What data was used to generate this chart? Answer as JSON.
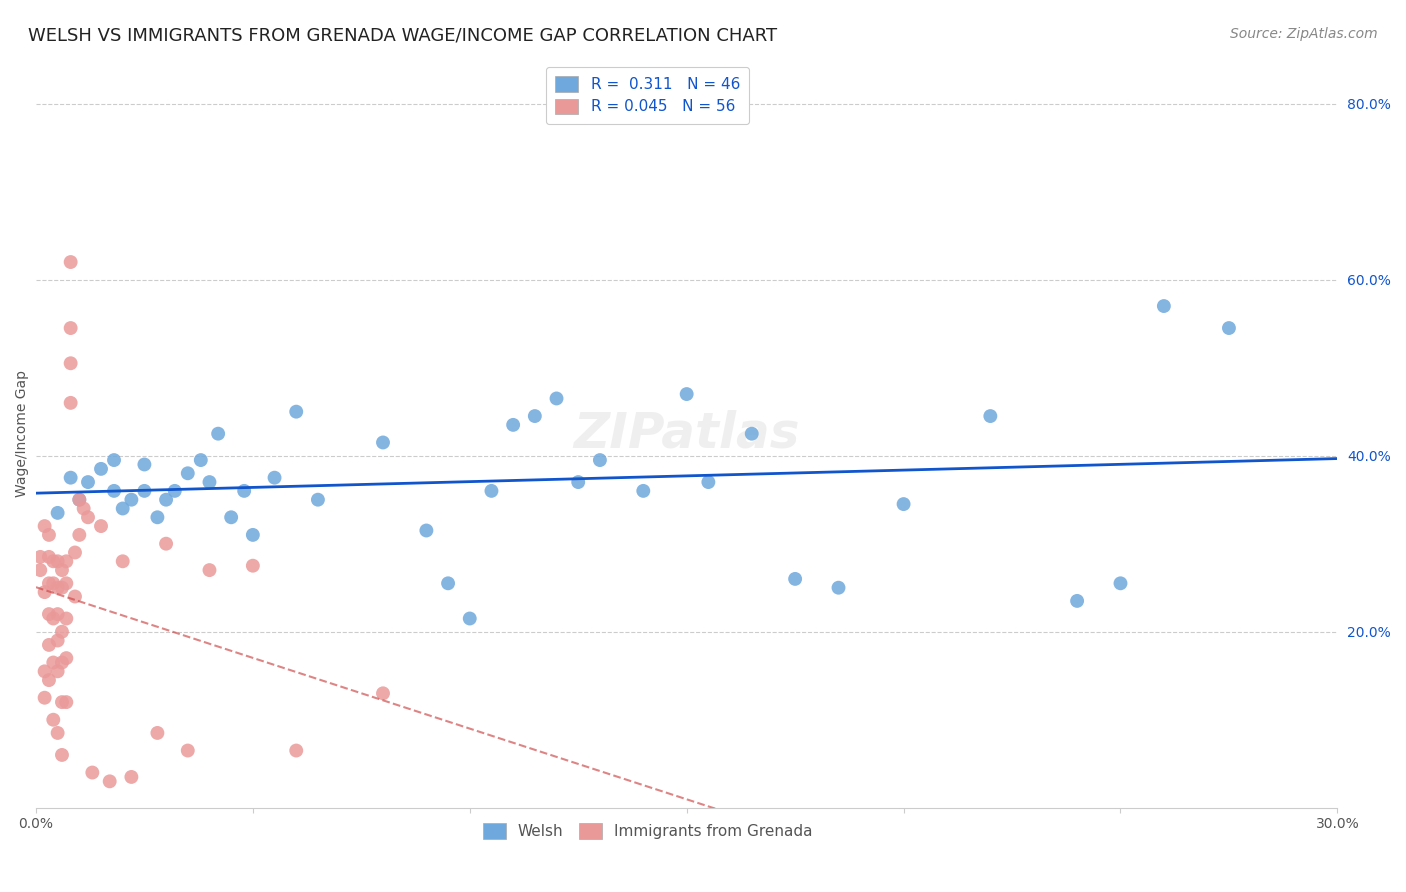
{
  "title": "WELSH VS IMMIGRANTS FROM GRENADA WAGE/INCOME GAP CORRELATION CHART",
  "source": "Source: ZipAtlas.com",
  "ylabel": "Wage/Income Gap",
  "watermark": "ZIPatlas",
  "welsh_R": 0.311,
  "welsh_N": 46,
  "grenada_R": 0.045,
  "grenada_N": 56,
  "xlim": [
    0.0,
    0.3
  ],
  "ylim": [
    0.0,
    0.85
  ],
  "y_ticks_right": [
    0.2,
    0.4,
    0.6,
    0.8
  ],
  "y_tick_labels_right": [
    "20.0%",
    "40.0%",
    "60.0%",
    "80.0%"
  ],
  "welsh_color": "#6fa8dc",
  "grenada_color": "#ea9999",
  "welsh_line_color": "#1155cc",
  "grenada_line_color": "#cc4444",
  "legend_color": "#1155cc",
  "background_color": "#ffffff",
  "welsh_x": [
    0.005,
    0.008,
    0.01,
    0.012,
    0.015,
    0.018,
    0.018,
    0.02,
    0.022,
    0.025,
    0.025,
    0.028,
    0.03,
    0.032,
    0.035,
    0.038,
    0.04,
    0.042,
    0.045,
    0.048,
    0.05,
    0.055,
    0.06,
    0.065,
    0.08,
    0.09,
    0.095,
    0.1,
    0.105,
    0.11,
    0.115,
    0.12,
    0.125,
    0.13,
    0.14,
    0.15,
    0.155,
    0.165,
    0.175,
    0.185,
    0.2,
    0.22,
    0.24,
    0.25,
    0.26,
    0.275
  ],
  "welsh_y": [
    0.335,
    0.375,
    0.35,
    0.37,
    0.385,
    0.36,
    0.395,
    0.34,
    0.35,
    0.36,
    0.39,
    0.33,
    0.35,
    0.36,
    0.38,
    0.395,
    0.37,
    0.425,
    0.33,
    0.36,
    0.31,
    0.375,
    0.45,
    0.35,
    0.415,
    0.315,
    0.255,
    0.215,
    0.36,
    0.435,
    0.445,
    0.465,
    0.37,
    0.395,
    0.36,
    0.47,
    0.37,
    0.425,
    0.26,
    0.25,
    0.345,
    0.445,
    0.235,
    0.255,
    0.57,
    0.545
  ],
  "grenada_x": [
    0.001,
    0.001,
    0.002,
    0.002,
    0.002,
    0.002,
    0.003,
    0.003,
    0.003,
    0.003,
    0.003,
    0.003,
    0.004,
    0.004,
    0.004,
    0.004,
    0.004,
    0.005,
    0.005,
    0.005,
    0.005,
    0.005,
    0.005,
    0.006,
    0.006,
    0.006,
    0.006,
    0.006,
    0.006,
    0.007,
    0.007,
    0.007,
    0.007,
    0.007,
    0.008,
    0.008,
    0.008,
    0.008,
    0.009,
    0.009,
    0.01,
    0.01,
    0.011,
    0.012,
    0.013,
    0.015,
    0.017,
    0.02,
    0.022,
    0.028,
    0.03,
    0.035,
    0.04,
    0.05,
    0.06,
    0.08
  ],
  "grenada_y": [
    0.27,
    0.285,
    0.32,
    0.245,
    0.155,
    0.125,
    0.31,
    0.285,
    0.255,
    0.22,
    0.185,
    0.145,
    0.28,
    0.255,
    0.215,
    0.165,
    0.1,
    0.28,
    0.25,
    0.22,
    0.19,
    0.155,
    0.085,
    0.27,
    0.25,
    0.2,
    0.165,
    0.12,
    0.06,
    0.28,
    0.255,
    0.215,
    0.17,
    0.12,
    0.545,
    0.505,
    0.46,
    0.62,
    0.29,
    0.24,
    0.35,
    0.31,
    0.34,
    0.33,
    0.04,
    0.32,
    0.03,
    0.28,
    0.035,
    0.085,
    0.3,
    0.065,
    0.27,
    0.275,
    0.065,
    0.13
  ],
  "title_fontsize": 13,
  "source_fontsize": 10,
  "axis_label_fontsize": 10,
  "tick_fontsize": 10,
  "legend_fontsize": 11,
  "watermark_fontsize": 36,
  "watermark_alpha": 0.12
}
